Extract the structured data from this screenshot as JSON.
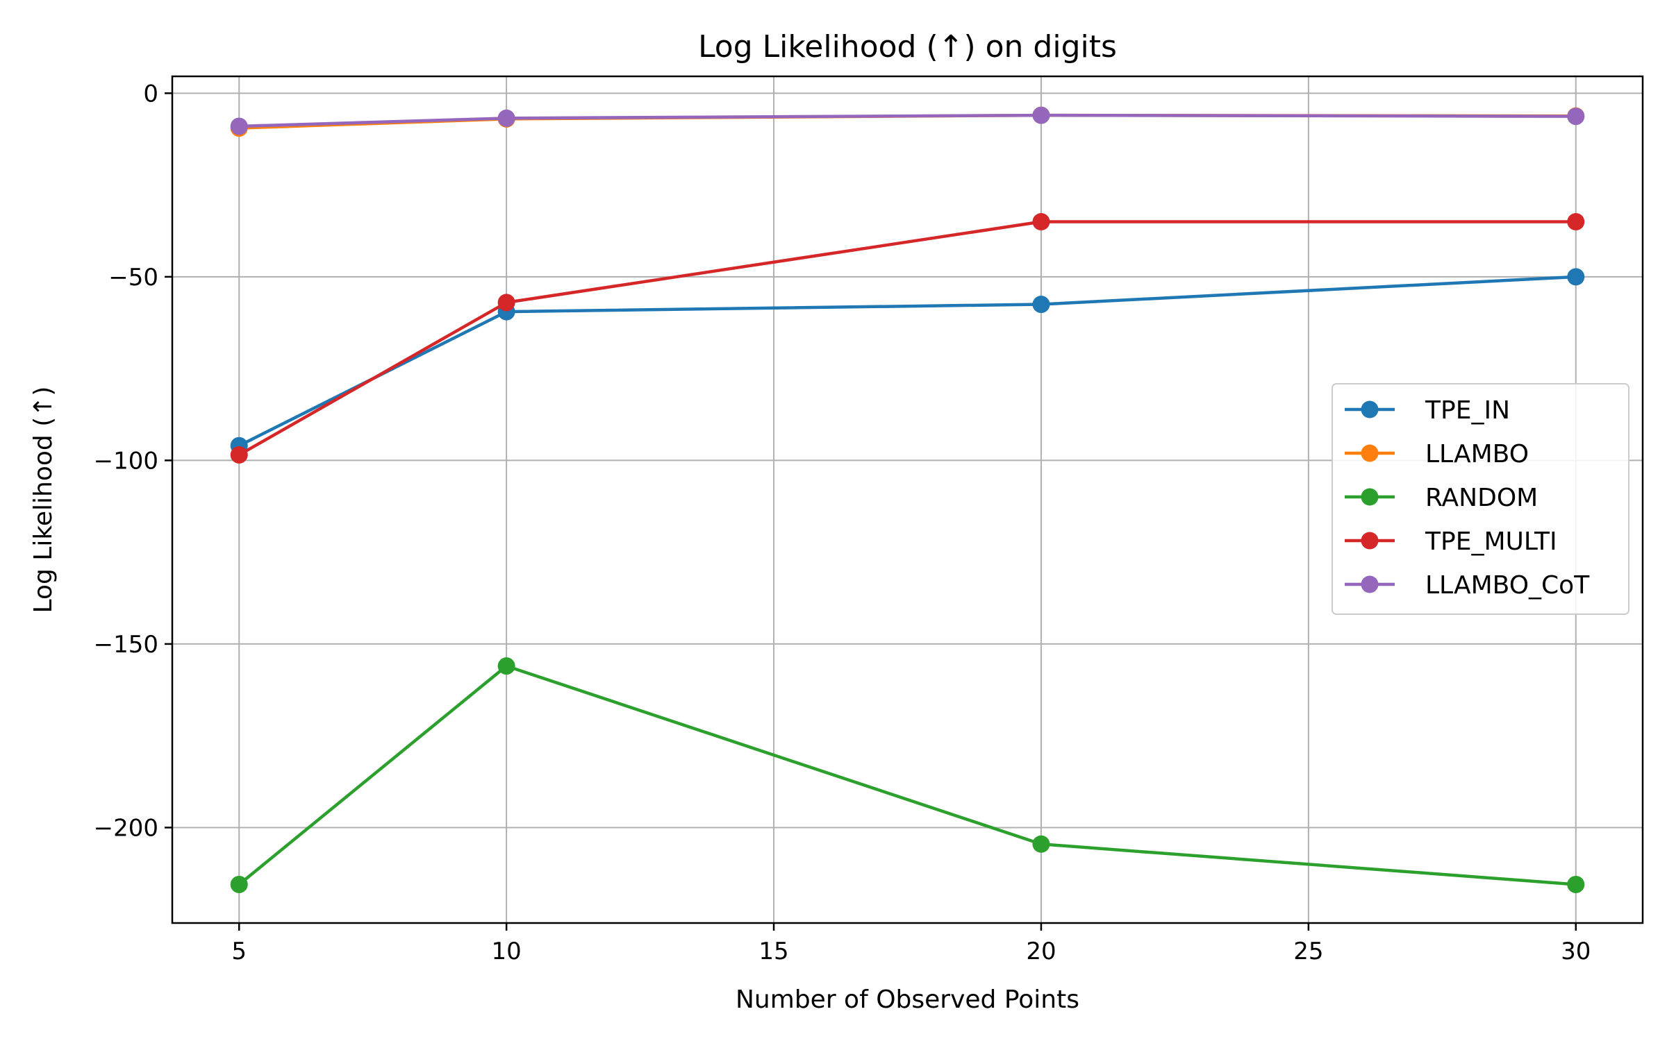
{
  "chart_data": {
    "type": "line",
    "title": "Log Likelihood (↑) on digits",
    "xlabel": "Number of Observed Points",
    "ylabel": "Log Likelihood (↑)",
    "x": [
      5,
      10,
      20,
      30
    ],
    "xlim": [
      3.75,
      31.25
    ],
    "ylim": [
      -226,
      4.6
    ],
    "xticks": [
      5,
      10,
      15,
      20,
      25,
      30
    ],
    "yticks": [
      0,
      -50,
      -100,
      -150,
      -200
    ],
    "xtick_labels": [
      "5",
      "10",
      "15",
      "20",
      "25",
      "30"
    ],
    "ytick_labels": [
      "0",
      "−50",
      "−100",
      "−150",
      "−200"
    ],
    "grid": true,
    "legend_position": "center-right",
    "series": [
      {
        "name": "TPE_IN",
        "color": "#1f77b4",
        "values": [
          -96,
          -59.5,
          -57.5,
          -50
        ]
      },
      {
        "name": "LLAMBO",
        "color": "#ff7f0e",
        "values": [
          -9.5,
          -7,
          -6,
          -6.2
        ]
      },
      {
        "name": "RANDOM",
        "color": "#2ca02c",
        "values": [
          -215.5,
          -156,
          -204.5,
          -215.5
        ]
      },
      {
        "name": "TPE_MULTI",
        "color": "#d62728",
        "values": [
          -98.5,
          -57,
          -35,
          -35
        ]
      },
      {
        "name": "LLAMBO_CoT",
        "color": "#9467bd",
        "values": [
          -9,
          -6.8,
          -6,
          -6.3
        ]
      }
    ]
  }
}
